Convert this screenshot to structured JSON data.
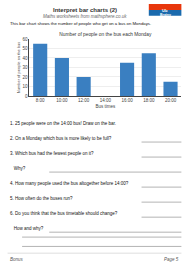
{
  "chart_data": {
    "type": "bar",
    "title": "Number of people on the bus each Monday",
    "xlabel": "Bus times",
    "ylabel": "Number of people on the bus",
    "categories": [
      "8:00",
      "10:00",
      "12:00",
      "14:00",
      "16:00",
      "18:00",
      "20:00"
    ],
    "values": [
      55,
      40,
      20,
      0,
      35,
      45,
      15
    ],
    "color": "#3a7fc1",
    "ylim": [
      0,
      60
    ],
    "yticks": [
      0,
      10,
      20,
      30,
      40,
      50,
      60
    ],
    "grid": true,
    "annotations": [
      "Interpret bar charts (2)",
      "Maths worksheets from mathsphere.co.uk",
      "Ub",
      "Brainy",
      "This bar chart shows the number of people who get on a bus on Mondays.",
      "1. 25 people were on the 14:00 bus! Draw on the bar.",
      "2. On a Monday which bus is more likely to be full?",
      "3. Which bus had the fewest people on it?",
      "   Why?",
      "4. How many people used the bus altogether before 14:00?",
      "5. How often do the buses run?",
      "6. Do you think that the bus timetable should change?",
      "   How and why?",
      "Bonus",
      "Page 5"
    ]
  }
}
